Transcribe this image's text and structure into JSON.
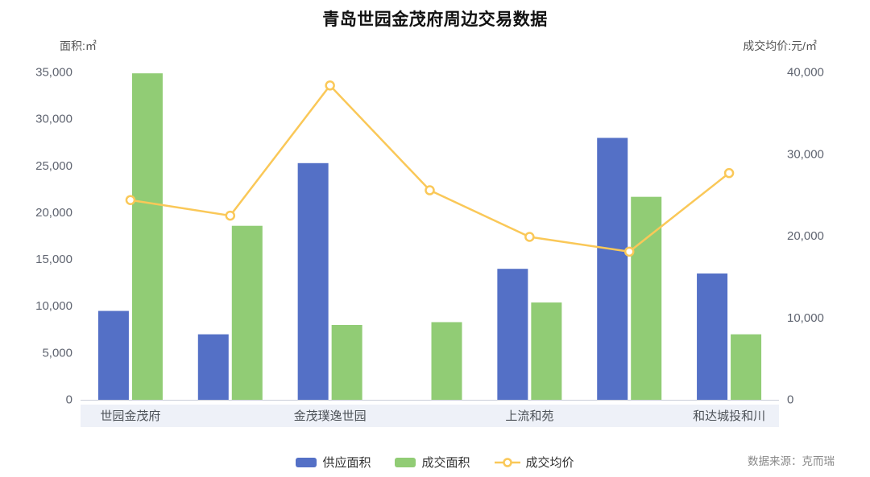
{
  "title": "青岛世园金茂府周边交易数据",
  "axes": {
    "left_unit": "面积:㎡",
    "right_unit": "成交均价:元/㎡",
    "left_ticks": [
      "0",
      "5,000",
      "10,000",
      "15,000",
      "20,000",
      "25,000",
      "30,000",
      "35,000"
    ],
    "right_ticks": [
      "0",
      "10,000",
      "20,000",
      "30,000",
      "40,000"
    ]
  },
  "source": "数据来源：克而瑞",
  "chart_data": {
    "type": "bar+line",
    "categories": [
      "世园金茂府",
      "",
      "金茂璞逸世园",
      "",
      "上流和苑",
      "",
      "和达城投和川"
    ],
    "labeled_category_indexes": [
      0,
      2,
      4,
      6
    ],
    "left_axis": {
      "label": "面积:㎡",
      "min": 0,
      "max": 35000,
      "step": 5000
    },
    "right_axis": {
      "label": "成交均价:元/㎡",
      "min": 0,
      "max": 40000,
      "step": 10000
    },
    "legend_position": "bottom",
    "grid": false,
    "series": [
      {
        "name": "供应面积",
        "type": "bar",
        "axis": "left",
        "color": "#5470C6",
        "values": [
          9500,
          7000,
          25300,
          null,
          14000,
          28000,
          13500
        ]
      },
      {
        "name": "成交面积",
        "type": "bar",
        "axis": "left",
        "color": "#91CC75",
        "values": [
          34900,
          18600,
          8000,
          8300,
          10400,
          21700,
          7000
        ]
      },
      {
        "name": "成交均价",
        "type": "line",
        "axis": "right",
        "color": "#FAC858",
        "values": [
          24400,
          22500,
          38400,
          25600,
          19900,
          18100,
          27700
        ]
      }
    ]
  }
}
